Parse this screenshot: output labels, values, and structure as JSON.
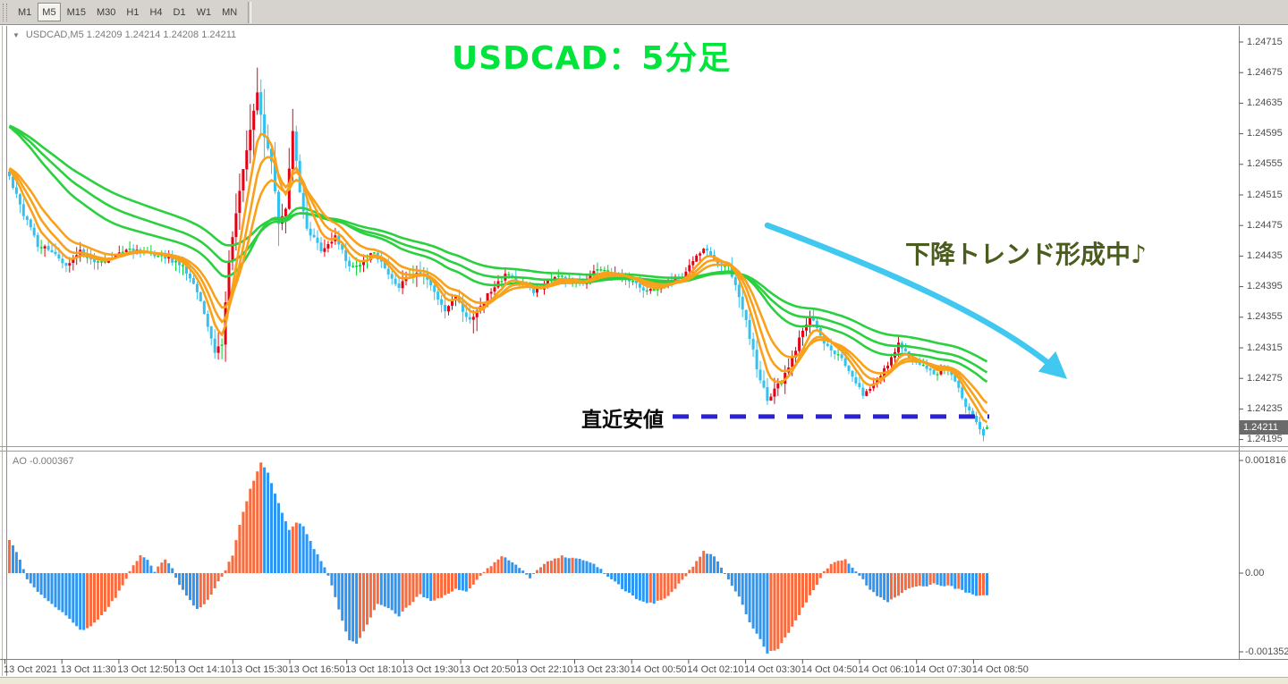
{
  "toolbar": {
    "timeframes": [
      {
        "label": "M1",
        "active": false
      },
      {
        "label": "M5",
        "active": true
      },
      {
        "label": "M15",
        "active": false
      },
      {
        "label": "M30",
        "active": false
      },
      {
        "label": "H1",
        "active": false
      },
      {
        "label": "H4",
        "active": false
      },
      {
        "label": "D1",
        "active": false
      },
      {
        "label": "W1",
        "active": false
      },
      {
        "label": "MN",
        "active": false
      }
    ]
  },
  "chart": {
    "dropdown_icon": "▼",
    "symbol_line": "USDCAD,M5   1.24209 1.24214 1.24208 1.24211"
  },
  "annotations": {
    "title": "USDCAD：5分足",
    "trend_note": "下降トレンド形成中♪",
    "recent_low_label": "直近安値"
  },
  "colors": {
    "candle_up": "#e60013",
    "candle_down": "#33c1ee",
    "candle_doji": "#00d22c",
    "ma_fast": "#f9a11b",
    "ma_slow": "#2bd03e",
    "ao_up": "#f96b3e",
    "ao_down": "#2e96f2",
    "title": "#00e43c",
    "trend_note": "#4a5c1e",
    "recent_low_line": "#2b22d6",
    "arrow": "#41c8f0",
    "current_price_bg": "#6a6a6a"
  },
  "chart_data": {
    "panes": [
      {
        "type": "candlestick",
        "symbol": "USDCAD",
        "timeframe": "M5",
        "ohlc_current": {
          "open": 1.24209,
          "high": 1.24214,
          "low": 1.24208,
          "close": 1.24211
        },
        "bars_count": 277,
        "y_axis": {
          "top_price": 1.24715,
          "tick_step": 0.0004,
          "labels": [
            "1.24715",
            "1.24675",
            "1.24635",
            "1.24595",
            "1.24555",
            "1.24515",
            "1.24475",
            "1.24435",
            "1.24395",
            "1.24355",
            "1.24315",
            "1.24275",
            "1.24235",
            "1.24195"
          ],
          "current_price_label": "1.24211"
        },
        "x_axis": {
          "labels": [
            "13 Oct 2021",
            "13 Oct 11:30",
            "13 Oct 12:50",
            "13 Oct 14:10",
            "13 Oct 15:30",
            "13 Oct 16:50",
            "13 Oct 18:10",
            "13 Oct 19:30",
            "13 Oct 20:50",
            "13 Oct 22:10",
            "13 Oct 23:30",
            "14 Oct 00:50",
            "14 Oct 02:10",
            "14 Oct 03:30",
            "14 Oct 04:50",
            "14 Oct 06:10",
            "14 Oct 07:30",
            "14 Oct 08:50"
          ]
        },
        "recent_low_level": 1.24225,
        "ma_fast_periods": [
          6,
          10,
          16
        ],
        "ma_slow_periods": [
          40,
          55,
          75
        ],
        "price_path_anchors": [
          [
            0,
            1.2454
          ],
          [
            4,
            1.2449
          ],
          [
            8,
            1.2445
          ],
          [
            12,
            1.2444
          ],
          [
            16,
            1.24425
          ],
          [
            20,
            1.2444
          ],
          [
            24,
            1.2443
          ],
          [
            28,
            1.2443
          ],
          [
            33,
            1.24445
          ],
          [
            38,
            1.2444
          ],
          [
            44,
            1.24435
          ],
          [
            49,
            1.2442
          ],
          [
            52,
            1.244
          ],
          [
            55,
            1.2436
          ],
          [
            58,
            1.2431
          ],
          [
            60,
            1.2432
          ],
          [
            62,
            1.2443
          ],
          [
            65,
            1.2452
          ],
          [
            68,
            1.246
          ],
          [
            70,
            1.2465
          ],
          [
            72,
            1.2459
          ],
          [
            74,
            1.2456
          ],
          [
            76,
            1.2448
          ],
          [
            78,
            1.245
          ],
          [
            80,
            1.246
          ],
          [
            82,
            1.2452
          ],
          [
            84,
            1.2447
          ],
          [
            86,
            1.2446
          ],
          [
            88,
            1.2444
          ],
          [
            90,
            1.2445
          ],
          [
            92,
            1.2446
          ],
          [
            95,
            1.2443
          ],
          [
            97,
            1.2442
          ],
          [
            100,
            1.2443
          ],
          [
            103,
            1.2444
          ],
          [
            106,
            1.2442
          ],
          [
            110,
            1.24395
          ],
          [
            113,
            1.2441
          ],
          [
            117,
            1.2441
          ],
          [
            120,
            1.2439
          ],
          [
            123,
            1.24365
          ],
          [
            126,
            1.2438
          ],
          [
            130,
            1.2435
          ],
          [
            133,
            1.2437
          ],
          [
            136,
            1.2439
          ],
          [
            140,
            1.2441
          ],
          [
            144,
            1.244
          ],
          [
            148,
            1.2439
          ],
          [
            152,
            1.244
          ],
          [
            155,
            1.2441
          ],
          [
            158,
            1.244
          ],
          [
            162,
            1.244
          ],
          [
            165,
            1.24415
          ],
          [
            168,
            1.24415
          ],
          [
            172,
            1.2441
          ],
          [
            175,
            1.24405
          ],
          [
            179,
            1.2439
          ],
          [
            182,
            1.2439
          ],
          [
            186,
            1.244
          ],
          [
            190,
            1.2441
          ],
          [
            193,
            1.2443
          ],
          [
            196,
            1.24445
          ],
          [
            199,
            1.2443
          ],
          [
            201,
            1.24425
          ],
          [
            203,
            1.2442
          ],
          [
            205,
            1.244
          ],
          [
            208,
            1.2435
          ],
          [
            211,
            1.2429
          ],
          [
            214,
            1.24245
          ],
          [
            216,
            1.2426
          ],
          [
            218,
            1.2427
          ],
          [
            220,
            1.2429
          ],
          [
            222,
            1.2431
          ],
          [
            224,
            1.2434
          ],
          [
            226,
            1.24355
          ],
          [
            228,
            1.2434
          ],
          [
            230,
            1.2432
          ],
          [
            232,
            1.2431
          ],
          [
            235,
            1.243
          ],
          [
            238,
            1.2428
          ],
          [
            241,
            1.24255
          ],
          [
            243,
            1.2426
          ],
          [
            246,
            1.2428
          ],
          [
            249,
            1.243
          ],
          [
            251,
            1.2432
          ],
          [
            253,
            1.2431
          ],
          [
            256,
            1.24295
          ],
          [
            259,
            1.2429
          ],
          [
            261,
            1.2428
          ],
          [
            263,
            1.24285
          ],
          [
            265,
            1.24285
          ],
          [
            267,
            1.2427
          ],
          [
            269,
            1.2425
          ],
          [
            271,
            1.2423
          ],
          [
            273,
            1.24215
          ],
          [
            275,
            1.242
          ],
          [
            276,
            1.24211
          ]
        ],
        "volatility_anchors": [
          [
            0,
            1.2
          ],
          [
            40,
            1.0
          ],
          [
            52,
            1.3
          ],
          [
            58,
            1.8
          ],
          [
            62,
            2.4
          ],
          [
            66,
            3.0
          ],
          [
            70,
            4.5
          ],
          [
            74,
            3.2
          ],
          [
            80,
            3.0
          ],
          [
            84,
            2.2
          ],
          [
            88,
            1.4
          ],
          [
            96,
            1.1
          ],
          [
            108,
            1.4
          ],
          [
            120,
            1.6
          ],
          [
            126,
            1.8
          ],
          [
            131,
            2.0
          ],
          [
            136,
            1.2
          ],
          [
            150,
            0.9
          ],
          [
            168,
            0.9
          ],
          [
            185,
            1.0
          ],
          [
            196,
            1.1
          ],
          [
            204,
            1.2
          ],
          [
            209,
            1.7
          ],
          [
            215,
            1.7
          ],
          [
            222,
            1.2
          ],
          [
            232,
            1.0
          ],
          [
            244,
            1.0
          ],
          [
            258,
            0.9
          ],
          [
            268,
            0.9
          ],
          [
            276,
            0.8
          ]
        ]
      },
      {
        "type": "bar",
        "indicator": "AO",
        "label_line": "AO -0.000367",
        "current_value": -0.000367,
        "y_axis": {
          "labels": [
            "0.001816",
            "0.00",
            "-0.001352"
          ]
        },
        "value_anchors": [
          [
            0,
            0.00055
          ],
          [
            2,
            0.00035
          ],
          [
            4,
            8e-05
          ],
          [
            5,
            -0.0001
          ],
          [
            8,
            -0.0003
          ],
          [
            12,
            -0.00052
          ],
          [
            16,
            -0.0007
          ],
          [
            20,
            -0.00095
          ],
          [
            23,
            -0.00088
          ],
          [
            26,
            -0.0007
          ],
          [
            30,
            -0.0004
          ],
          [
            33,
            -8e-05
          ],
          [
            35,
            0.00012
          ],
          [
            37,
            0.0003
          ],
          [
            39,
            0.00022
          ],
          [
            41,
            3e-05
          ],
          [
            42,
            0.00012
          ],
          [
            44,
            0.00024
          ],
          [
            46,
            8e-05
          ],
          [
            48,
            -0.0002
          ],
          [
            51,
            -0.00045
          ],
          [
            53,
            -0.0006
          ],
          [
            56,
            -0.00045
          ],
          [
            59,
            -0.00015
          ],
          [
            61,
            5e-05
          ],
          [
            63,
            0.0003
          ],
          [
            65,
            0.0008
          ],
          [
            68,
            0.0014
          ],
          [
            71,
            0.00182
          ],
          [
            73,
            0.00165
          ],
          [
            75,
            0.0013
          ],
          [
            77,
            0.001
          ],
          [
            79,
            0.0007
          ],
          [
            81,
            0.00085
          ],
          [
            83,
            0.00078
          ],
          [
            86,
            0.0004
          ],
          [
            89,
            0.0001
          ],
          [
            91,
            -0.0002
          ],
          [
            94,
            -0.0008
          ],
          [
            96,
            -0.0011
          ],
          [
            98,
            -0.00118
          ],
          [
            101,
            -0.00085
          ],
          [
            104,
            -0.0005
          ],
          [
            107,
            -0.00058
          ],
          [
            110,
            -0.0007
          ],
          [
            113,
            -0.00052
          ],
          [
            116,
            -0.00035
          ],
          [
            119,
            -0.00047
          ],
          [
            122,
            -0.0004
          ],
          [
            126,
            -0.00027
          ],
          [
            129,
            -0.0003
          ],
          [
            132,
            -0.00012
          ],
          [
            134,
            3e-05
          ],
          [
            136,
            0.00012
          ],
          [
            139,
            0.00028
          ],
          [
            142,
            0.00018
          ],
          [
            145,
            4e-05
          ],
          [
            147,
            -8e-05
          ],
          [
            149,
            6e-05
          ],
          [
            152,
            0.0002
          ],
          [
            156,
            0.00028
          ],
          [
            160,
            0.00024
          ],
          [
            164,
            0.00018
          ],
          [
            167,
            6e-05
          ],
          [
            170,
            -0.0001
          ],
          [
            174,
            -0.0003
          ],
          [
            178,
            -0.00046
          ],
          [
            182,
            -0.0005
          ],
          [
            186,
            -0.00038
          ],
          [
            189,
            -0.00018
          ],
          [
            191,
            -4e-05
          ],
          [
            193,
            0.00012
          ],
          [
            196,
            0.00036
          ],
          [
            199,
            0.00028
          ],
          [
            201,
            0.0001
          ],
          [
            203,
            -0.0001
          ],
          [
            206,
            -0.0004
          ],
          [
            209,
            -0.0008
          ],
          [
            212,
            -0.0011
          ],
          [
            214,
            -0.00132
          ],
          [
            217,
            -0.00124
          ],
          [
            220,
            -0.00098
          ],
          [
            223,
            -0.00068
          ],
          [
            226,
            -0.00038
          ],
          [
            228,
            -0.00018
          ],
          [
            230,
            4e-05
          ],
          [
            232,
            0.00014
          ],
          [
            234,
            0.0002
          ],
          [
            236,
            0.00022
          ],
          [
            238,
            0.0001
          ],
          [
            240,
            -3e-05
          ],
          [
            242,
            -0.0002
          ],
          [
            245,
            -0.00038
          ],
          [
            248,
            -0.00047
          ],
          [
            251,
            -0.00038
          ],
          [
            254,
            -0.00024
          ],
          [
            257,
            -0.0002
          ],
          [
            259,
            -0.00023
          ],
          [
            261,
            -0.00018
          ],
          [
            263,
            -0.00022
          ],
          [
            265,
            -0.0002
          ],
          [
            267,
            -0.00025
          ],
          [
            270,
            -0.00031
          ],
          [
            273,
            -0.00037
          ],
          [
            276,
            -0.000367
          ]
        ]
      }
    ]
  }
}
